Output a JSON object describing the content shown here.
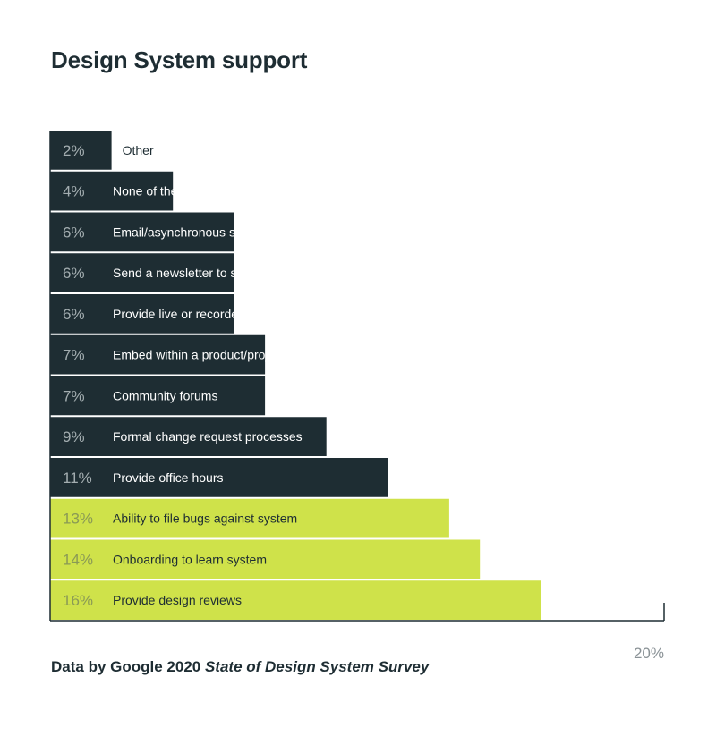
{
  "chart_data": {
    "type": "bar",
    "orientation": "horizontal",
    "title": "Design System support",
    "xlim": [
      0,
      20
    ],
    "x_tick_label": "20%",
    "categories": [
      "Other",
      "None of the list",
      "Email/asynchronous support",
      "Send a newsletter to share additions or updates",
      "Provide live or recorded learning sessions",
      "Embed within a product/project team",
      "Community forums",
      "Formal change request processes",
      "Provide office hours",
      "Ability to file bugs against system",
      "Onboarding to learn system",
      "Provide design reviews"
    ],
    "values": [
      2,
      4,
      6,
      6,
      6,
      7,
      7,
      9,
      11,
      13,
      14,
      16
    ],
    "value_labels": [
      "2%",
      "4%",
      "6%",
      "6%",
      "6%",
      "7%",
      "7%",
      "9%",
      "11%",
      "13%",
      "14%",
      "16%"
    ],
    "highlight_from_value": 13,
    "colors": {
      "default_bar": "#1e2d33",
      "highlight_bar": "#cfe24a",
      "default_value_text": "#a3adb0",
      "highlight_value_text": "#8a9a55",
      "inside_label_default": "#ffffff",
      "inside_label_highlight": "#1e2d33",
      "outside_label": "#1e2d33",
      "axis": "#1e2d33"
    },
    "grid": false,
    "legend": "none"
  },
  "footer": {
    "source_prefix": "Data by Google 2020",
    "source_title": "State of Design System Survey"
  }
}
